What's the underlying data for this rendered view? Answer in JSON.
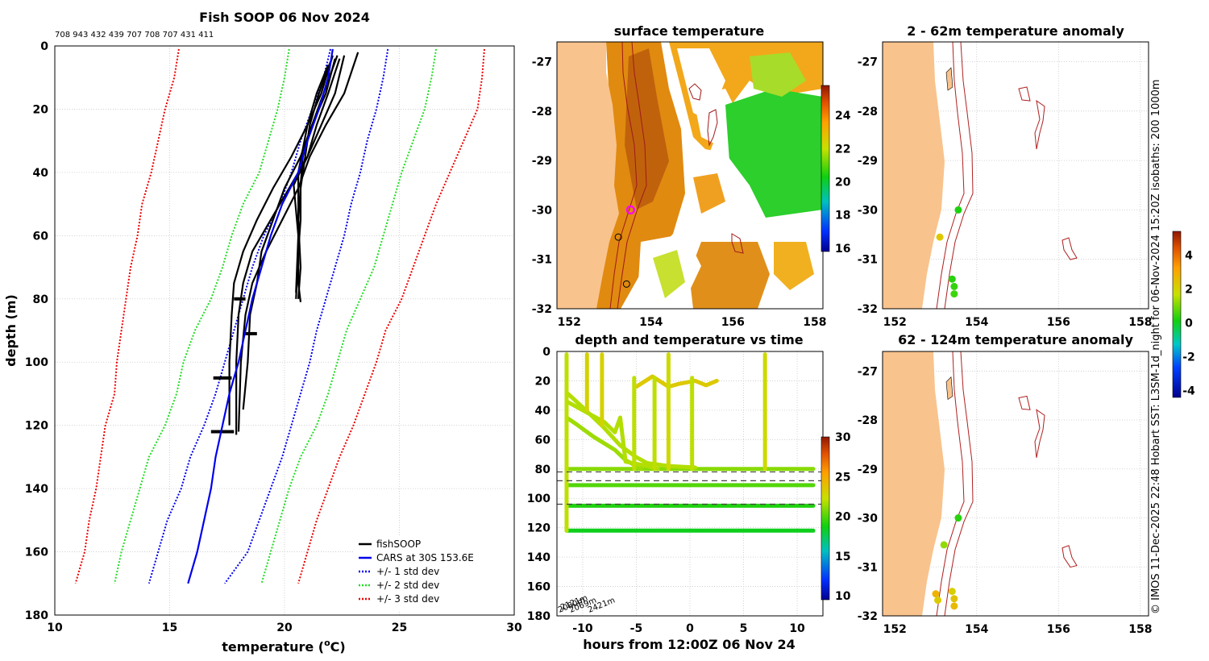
{
  "figure": {
    "side_caption": "© IMOS 11-Dec-2025 22:48 Hobart SST: L3SM-1d_night for 06-Nov-2024 15:20Z isobaths: 200  1000m"
  },
  "colors": {
    "fishsoop": "#000000",
    "cars": "#0000ee",
    "std1": "#0000ee",
    "std2": "#22dd22",
    "std3": "#ee0000",
    "land": "#f9c38d",
    "isobath": "#b02020",
    "grid": "#c8c8c8"
  },
  "chart_data": [
    {
      "id": "profile",
      "type": "line",
      "title": "Fish SOOP 06 Nov 2024",
      "header_ids": "708 943 432 439 707 708 707 431 411",
      "xlabel": "temperature (",
      "xlabel_sup": "o",
      "xlabel_end": "C)",
      "ylabel": "depth (m)",
      "xlim": [
        10,
        30
      ],
      "ylim": [
        0,
        180
      ],
      "xticks": [
        "10",
        "15",
        "20",
        "25",
        "30"
      ],
      "yticks": [
        "0",
        "20",
        "40",
        "60",
        "80",
        "100",
        "120",
        "140",
        "160",
        "180"
      ],
      "legend": [
        "fishSOOP",
        "CARS at 30S 153.6E",
        "+/- 1 std dev",
        "+/- 2 std dev",
        "+/- 3 std dev"
      ],
      "cars_depth": [
        1,
        10,
        20,
        30,
        40,
        50,
        60,
        70,
        80,
        90,
        100,
        110,
        120,
        130,
        140,
        150,
        160,
        170
      ],
      "cars_temp": [
        22.1,
        21.9,
        21.5,
        21.0,
        20.6,
        19.9,
        19.4,
        19.0,
        18.6,
        18.3,
        18.0,
        17.6,
        17.3,
        17.0,
        16.8,
        16.5,
        16.2,
        15.8
      ],
      "std_depth": [
        1,
        10,
        20,
        30,
        40,
        50,
        60,
        70,
        80,
        90,
        100,
        110,
        120,
        130,
        140,
        150,
        160,
        170
      ],
      "std1_minus": [
        22.0,
        21.7,
        21.2,
        20.7,
        20.3,
        19.8,
        19.1,
        18.6,
        18.2,
        17.8,
        17.4,
        17.0,
        16.5,
        15.9,
        15.5,
        14.9,
        14.5,
        14.1
      ],
      "std1_plus": [
        24.5,
        24.3,
        24.0,
        23.6,
        23.3,
        22.9,
        22.6,
        22.2,
        21.8,
        21.4,
        21.1,
        20.7,
        20.3,
        19.9,
        19.4,
        18.9,
        18.4,
        17.4
      ],
      "std2_minus": [
        20.2,
        20.0,
        19.7,
        19.3,
        18.9,
        18.2,
        17.7,
        17.3,
        16.8,
        16.1,
        15.6,
        15.3,
        14.8,
        14.1,
        13.7,
        13.3,
        12.9,
        12.6
      ],
      "std2_plus": [
        26.6,
        26.4,
        26.1,
        25.6,
        25.1,
        24.7,
        24.3,
        23.9,
        23.3,
        22.7,
        22.3,
        21.9,
        21.4,
        20.7,
        20.2,
        19.8,
        19.4,
        19.0
      ],
      "std3_minus": [
        15.4,
        15.2,
        14.8,
        14.5,
        14.2,
        13.8,
        13.6,
        13.3,
        13.1,
        12.9,
        12.7,
        12.6,
        12.2,
        12.0,
        11.8,
        11.5,
        11.3,
        10.9
      ],
      "std3_plus": [
        28.7,
        28.6,
        28.4,
        27.8,
        27.2,
        26.6,
        26.1,
        25.6,
        25.1,
        24.4,
        24.0,
        23.5,
        23.0,
        22.4,
        21.9,
        21.4,
        21.0,
        20.6
      ],
      "fish_series": [
        {
          "name": "fishSOOP profile 1",
          "temp": [
            22.1,
            21.6,
            21.0,
            20.3,
            19.5,
            18.8,
            18.2,
            17.8,
            17.7,
            17.6,
            17.6
          ],
          "depth": [
            3,
            15,
            25,
            35,
            45,
            55,
            65,
            75,
            85,
            100,
            120
          ]
        },
        {
          "name": "fishSOOP profile 2",
          "temp": [
            22.6,
            22.2,
            21.6,
            21.0,
            20.2,
            19.4,
            18.6,
            18.2,
            18.0,
            17.9,
            17.9
          ],
          "depth": [
            3,
            15,
            25,
            35,
            45,
            55,
            65,
            75,
            85,
            100,
            123
          ]
        },
        {
          "name": "fishSOOP profile 3",
          "temp": [
            23.2,
            22.6,
            21.8,
            21.1,
            20.6,
            19.9,
            19.2,
            18.6,
            18.3,
            18.1,
            18.0
          ],
          "depth": [
            2,
            15,
            25,
            35,
            45,
            55,
            65,
            75,
            85,
            100,
            122
          ]
        },
        {
          "name": "fishSOOP profile 4",
          "temp": [
            22.3,
            21.7,
            21.2,
            20.8,
            20.7,
            20.7,
            20.6,
            20.6,
            20.7
          ],
          "depth": [
            3,
            15,
            25,
            35,
            44,
            55,
            65,
            75,
            81
          ]
        },
        {
          "name": "fishSOOP profile 5",
          "temp": [
            22.0,
            21.5,
            21.1,
            20.9,
            20.7,
            20.6,
            20.6,
            20.5
          ],
          "depth": [
            5,
            15,
            25,
            35,
            45,
            55,
            65,
            80
          ]
        },
        {
          "name": "fishSOOP profile 6",
          "temp": [
            21.9,
            21.4,
            21.0,
            20.6,
            20.6,
            20.7,
            20.6
          ],
          "depth": [
            6,
            15,
            25,
            40,
            55,
            70,
            80
          ]
        },
        {
          "name": "fishSOOP profile 7",
          "temp": [
            22.4,
            21.9,
            21.4,
            21.0,
            20.4,
            20.6,
            20.5
          ],
          "depth": [
            4,
            15,
            25,
            35,
            44,
            60,
            78
          ]
        },
        {
          "name": "fishSOOP profile 8",
          "temp": [
            22.2,
            21.8,
            21.2,
            20.7,
            20.0,
            19.5,
            19.0,
            18.8,
            18.5,
            18.4,
            18.2
          ],
          "depth": [
            4,
            15,
            25,
            35,
            45,
            55,
            65,
            75,
            85,
            100,
            115
          ]
        }
      ],
      "fish_bursts": [
        {
          "name": "fishSOOP burst 80m",
          "t0": 17.8,
          "t1": 18.3,
          "depth": 80
        },
        {
          "name": "fishSOOP burst 91m",
          "t0": 18.3,
          "t1": 18.8,
          "depth": 91
        },
        {
          "name": "fishSOOP burst 105m",
          "t0": 16.9,
          "t1": 17.7,
          "depth": 105
        },
        {
          "name": "fishSOOP burst 122m",
          "t0": 16.8,
          "t1": 17.8,
          "depth": 122
        }
      ]
    },
    {
      "id": "sst",
      "type": "heatmap",
      "title": "surface temperature",
      "xlim": [
        151.7,
        158.2
      ],
      "ylim": [
        -32,
        -26.6
      ],
      "xticks": [
        "152",
        "154",
        "156",
        "158"
      ],
      "yticks": [
        "-27",
        "-28",
        "-29",
        "-30",
        "-31",
        "-32"
      ],
      "colorbar_range": [
        15.8,
        25.8
      ],
      "colorbar_ticks": [
        "16",
        "18",
        "20",
        "22",
        "24"
      ],
      "profile_locations": [
        {
          "name": "sst-profile-marker-1",
          "lon": 153.5,
          "lat": -30.0,
          "color": "#ff00ff"
        },
        {
          "name": "sst-profile-marker-2",
          "lon": 153.2,
          "lat": -30.55,
          "color": "#000000"
        },
        {
          "name": "sst-profile-marker-3",
          "lon": 153.4,
          "lat": -31.5,
          "color": "#000000"
        }
      ]
    },
    {
      "id": "timeseries",
      "type": "scatter",
      "title": "depth and temperature vs time",
      "xlabel": "hours from 12:00Z 06 Nov 24",
      "xlim": [
        -12.4,
        12.4
      ],
      "ylim": [
        0,
        180
      ],
      "xticks": [
        "-10",
        "-5",
        "0",
        "5",
        "10"
      ],
      "yticks": [
        "0",
        "20",
        "40",
        "60",
        "80",
        "100",
        "120",
        "140",
        "160",
        "180"
      ],
      "colorbar_range": [
        9.5,
        30
      ],
      "colorbar_ticks": [
        "10",
        "15",
        "20",
        "25",
        "30"
      ],
      "reference_depths": [
        82,
        88,
        104
      ],
      "depth_labels": [
        "2080m",
        "2121m",
        "2069m",
        "2421m"
      ],
      "tracks": [
        {
          "name": "ts-track-80m",
          "time": [
            -11.5,
            -6,
            0,
            6,
            11.5
          ],
          "depth": [
            80,
            80,
            80,
            80,
            80
          ],
          "temp": [
            21,
            21,
            21,
            21,
            21
          ]
        },
        {
          "name": "ts-track-91m",
          "time": [
            -11.5,
            -6,
            0,
            6,
            11.5
          ],
          "depth": [
            91,
            91,
            91,
            91,
            91
          ],
          "temp": [
            20,
            20,
            20,
            20,
            20
          ]
        },
        {
          "name": "ts-track-105m",
          "time": [
            -11.5,
            -6,
            0,
            6,
            11.5
          ],
          "depth": [
            105,
            105,
            105,
            105,
            105
          ],
          "temp": [
            19,
            19,
            19,
            19,
            19
          ]
        },
        {
          "name": "ts-track-122m",
          "time": [
            -11.5,
            -6,
            0,
            6,
            11.5
          ],
          "depth": [
            122,
            122,
            122,
            122,
            122
          ],
          "temp": [
            18.5,
            18.5,
            18.5,
            18.5,
            18.5
          ]
        },
        {
          "name": "ts-descent-1",
          "time": [
            -11.5,
            -10,
            -8,
            -6.5,
            -5,
            -4,
            -2,
            0.5
          ],
          "depth": [
            28,
            38,
            52,
            64,
            72,
            76,
            78,
            79
          ],
          "temp": [
            23,
            22.5,
            22,
            21.8,
            21.5,
            21.3,
            21.2,
            21
          ]
        },
        {
          "name": "ts-descent-2",
          "time": [
            -11.5,
            -10.5,
            -9,
            -7,
            -6,
            -5,
            -4.5
          ],
          "depth": [
            45,
            50,
            58,
            67,
            74,
            78,
            80
          ],
          "temp": [
            22,
            21.8,
            21.5,
            21.3,
            21.2,
            21,
            21
          ]
        },
        {
          "name": "ts-descent-3",
          "time": [
            -11.5,
            -9.5,
            -8,
            -7,
            -6.5,
            -6,
            -4,
            -3
          ],
          "depth": [
            34,
            42,
            48,
            55,
            45,
            75,
            78,
            80
          ],
          "temp": [
            22.5,
            22.3,
            22,
            21.8,
            21.7,
            21.5,
            21.3,
            21.2
          ]
        },
        {
          "name": "ts-surface-segment",
          "time": [
            -5,
            -3.5,
            -2,
            -1,
            0.5,
            1.5,
            2.5
          ],
          "depth": [
            24,
            17,
            24,
            22,
            20,
            23,
            20
          ],
          "temp": [
            23.5,
            23.5,
            23.3,
            23.3,
            23.5,
            23.4,
            23.2
          ]
        },
        {
          "name": "ts-cast-1",
          "time": [
            -11.5,
            -11.5
          ],
          "depth": [
            2,
            122
          ],
          "temp": [
            24,
            20
          ]
        },
        {
          "name": "ts-cast-2",
          "time": [
            -9.6,
            -9.6
          ],
          "depth": [
            2,
            40
          ],
          "temp": [
            24,
            22
          ]
        },
        {
          "name": "ts-cast-3",
          "time": [
            -8.2,
            -8.2
          ],
          "depth": [
            2,
            50
          ],
          "temp": [
            24,
            22
          ]
        },
        {
          "name": "ts-cast-4",
          "time": [
            -5.2,
            -5.2
          ],
          "depth": [
            18,
            80
          ],
          "temp": [
            23,
            21
          ]
        },
        {
          "name": "ts-cast-5",
          "time": [
            -3.3,
            -3.3
          ],
          "depth": [
            18,
            80
          ],
          "temp": [
            23,
            21
          ]
        },
        {
          "name": "ts-cast-6",
          "time": [
            -2,
            -2
          ],
          "depth": [
            2,
            80
          ],
          "temp": [
            24,
            21
          ]
        },
        {
          "name": "ts-cast-7",
          "time": [
            0.2,
            0.2
          ],
          "depth": [
            18,
            80
          ],
          "temp": [
            23,
            21
          ]
        },
        {
          "name": "ts-cast-8",
          "time": [
            7,
            7
          ],
          "depth": [
            2,
            80
          ],
          "temp": [
            24,
            21
          ]
        }
      ]
    },
    {
      "id": "anom_shallow",
      "type": "scatter",
      "title": "2 - 62m temperature anomaly",
      "xlim": [
        151.7,
        158.2
      ],
      "ylim": [
        -32,
        -26.6
      ],
      "xticks": [
        "152",
        "154",
        "156",
        "158"
      ],
      "yticks": [
        "-27",
        "-28",
        "-29",
        "-30",
        "-31",
        "-32"
      ],
      "points": [
        {
          "lon": 153.55,
          "lat": -30.0,
          "anomaly": 0.2
        },
        {
          "lon": 153.1,
          "lat": -30.55,
          "anomaly": 2.3
        },
        {
          "lon": 153.4,
          "lat": -31.4,
          "anomaly": 0.3
        },
        {
          "lon": 153.45,
          "lat": -31.55,
          "anomaly": 0.4
        },
        {
          "lon": 153.45,
          "lat": -31.7,
          "anomaly": 0.5
        }
      ]
    },
    {
      "id": "anom_deep",
      "type": "scatter",
      "title": "62 - 124m temperature anomaly",
      "xlim": [
        151.7,
        158.2
      ],
      "ylim": [
        -32,
        -26.6
      ],
      "xticks": [
        "152",
        "154",
        "156",
        "158"
      ],
      "yticks": [
        "-27",
        "-28",
        "-29",
        "-30",
        "-31",
        "-32"
      ],
      "points": [
        {
          "lon": 153.55,
          "lat": -30.0,
          "anomaly": 0.3
        },
        {
          "lon": 153.2,
          "lat": -30.55,
          "anomaly": 1.2
        },
        {
          "lon": 153.0,
          "lat": -31.55,
          "anomaly": 2.8
        },
        {
          "lon": 153.05,
          "lat": -31.68,
          "anomaly": 2.2
        },
        {
          "lon": 153.4,
          "lat": -31.5,
          "anomaly": 2.1
        },
        {
          "lon": 153.45,
          "lat": -31.65,
          "anomaly": 2.4
        },
        {
          "lon": 153.45,
          "lat": -31.8,
          "anomaly": 2.6
        }
      ],
      "colorbar_range": [
        -4.4,
        5.4
      ],
      "colorbar_ticks": [
        "-4",
        "-2",
        "0",
        "2",
        "4"
      ]
    }
  ]
}
